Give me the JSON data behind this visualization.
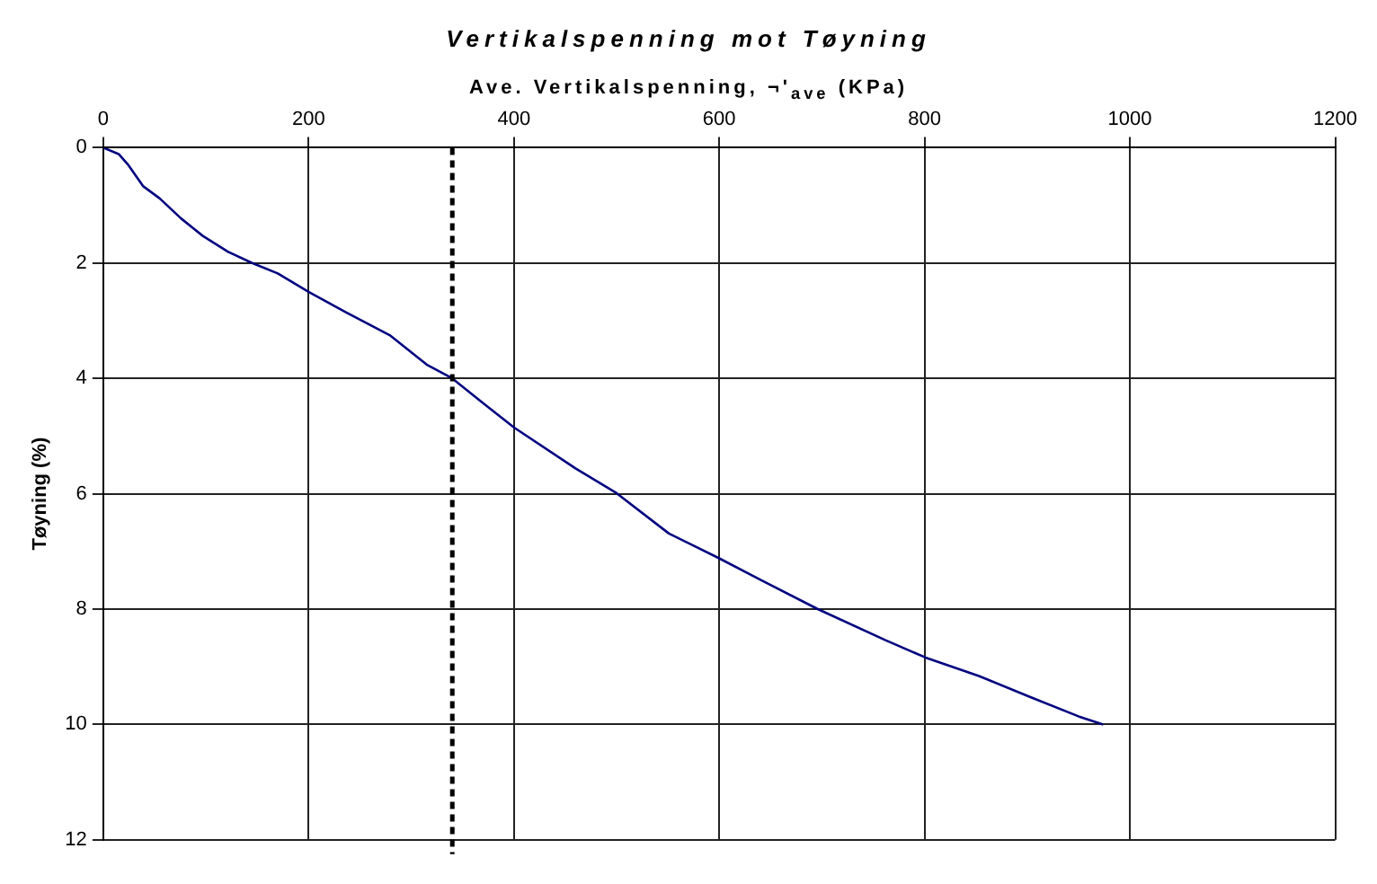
{
  "chart_data": {
    "type": "line",
    "title": "Vertikalspenning mot Tøyning",
    "xlabel": "Ave. Vertikalspenning, ¬'$_{ave}$ (KPa)",
    "ylabel": "Tøyning (%)",
    "series": [
      {
        "color": "#000080",
        "x": [
          0,
          15,
          24,
          39,
          55,
          76,
          97,
          121,
          145,
          170,
          200,
          236,
          279,
          315,
          340,
          370,
          400,
          460,
          500,
          551,
          600,
          641,
          696,
          762,
          801,
          853,
          901,
          950,
          974
        ],
        "values": [
          0,
          0.11,
          0.29,
          0.67,
          0.88,
          1.23,
          1.53,
          1.8,
          2.0,
          2.18,
          2.5,
          2.85,
          3.25,
          3.76,
          4.0,
          4.43,
          4.85,
          5.56,
          5.99,
          6.69,
          7.12,
          7.5,
          8.0,
          8.54,
          8.84,
          9.16,
          9.51,
          9.86,
          10.0
        ]
      }
    ],
    "xlim": [
      0,
      1200
    ],
    "xticks": [
      0,
      200,
      400,
      600,
      800,
      1000,
      1200
    ],
    "ylim": [
      12,
      0
    ],
    "yticks": [
      0,
      2,
      4,
      6,
      8,
      10,
      12
    ],
    "grid": true,
    "legend": false,
    "marker": "none",
    "line_style": "solid",
    "ref_lines": [
      {
        "axis": "x",
        "value": 340,
        "color": "#000000",
        "line_style": "dashed"
      }
    ]
  }
}
